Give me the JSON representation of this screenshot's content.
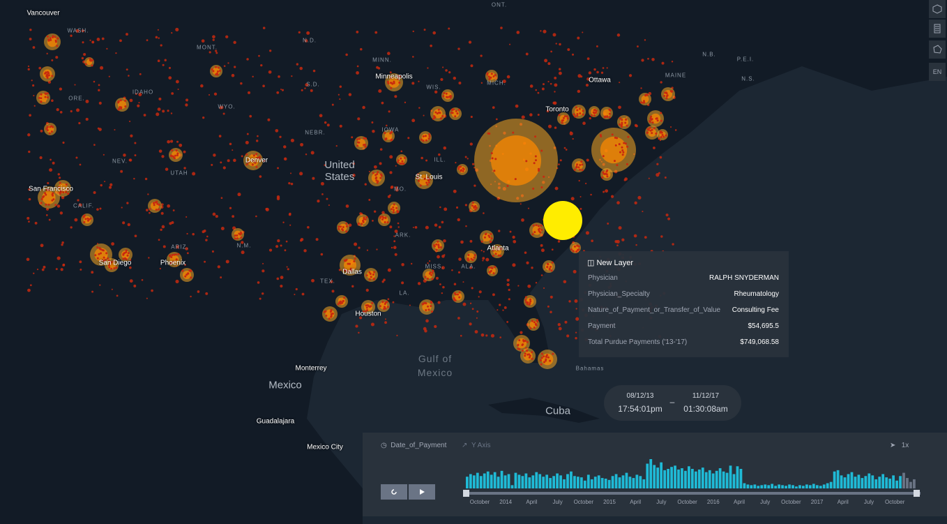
{
  "map_labels": [
    "Vancouver",
    "WASH.",
    "MONT.",
    "N.D.",
    "ONT.",
    "MINN.",
    "Minneapolis",
    "ORE.",
    "IDAHO",
    "WYO.",
    "S.D.",
    "WIS.",
    "MICH.",
    "Ottawa",
    "MAINE",
    "N.B.",
    "P.E.I.",
    "N.S.",
    "Toronto",
    "NEBR.",
    "IOWA",
    "NEV.",
    "UTAH",
    "Denver",
    "United States",
    "ILL.",
    "St. Louis",
    "MO.",
    "San Francisco",
    "CALIF.",
    "N.M.",
    "ARIZ.",
    "Phoenix",
    "San Diego",
    "TEX.",
    "ARK.",
    "MISS.",
    "ALA.",
    "LA.",
    "Atlanta",
    "Dallas",
    "Houston",
    "Gulf of Mexico",
    "Bahamas",
    "Monterrey",
    "Mexico",
    "Cuba",
    "Guadalajara",
    "Mexico City"
  ],
  "side_buttons": {
    "language": "EN"
  },
  "tooltip": {
    "title": "New Layer",
    "rows": [
      [
        "Physician",
        "RALPH SNYDERMAN"
      ],
      [
        "Physician_Specialty",
        "Rheumatology"
      ],
      [
        "Nature_of_Payment_or_Transfer_of_Value",
        "Consulting Fee"
      ],
      [
        "Payment",
        "$54,695.5"
      ],
      [
        "Total Purdue Payments ('13-'17)",
        "$749,068.58"
      ]
    ]
  },
  "time_range": {
    "start_date": "08/12/13",
    "start_time": "17:54:01pm",
    "separator": "–",
    "end_date": "11/12/17",
    "end_time": "01:30:08am"
  },
  "timeline": {
    "field": "Date_of_Payment",
    "y_axis": "Y Axis",
    "speed": "1x",
    "x_labels": [
      "October",
      "2014",
      "April",
      "July",
      "October",
      "2015",
      "April",
      "July",
      "October",
      "2016",
      "April",
      "July",
      "October",
      "2017",
      "April",
      "July",
      "October"
    ],
    "counts": [
      18,
      22,
      20,
      24,
      19,
      23,
      26,
      21,
      25,
      18,
      27,
      20,
      22,
      5,
      24,
      21,
      19,
      23,
      17,
      20,
      25,
      22,
      18,
      21,
      16,
      19,
      23,
      20,
      14,
      22,
      26,
      19,
      18,
      17,
      12,
      21,
      14,
      18,
      20,
      16,
      15,
      13,
      19,
      22,
      17,
      20,
      24,
      18,
      16,
      21,
      19,
      14,
      38,
      45,
      36,
      32,
      40,
      28,
      30,
      33,
      35,
      29,
      31,
      27,
      34,
      30,
      26,
      29,
      32,
      25,
      28,
      23,
      27,
      31,
      26,
      24,
      35,
      22,
      34,
      30,
      8,
      6,
      5,
      6,
      4,
      5,
      6,
      5,
      7,
      4,
      6,
      5,
      4,
      6,
      5,
      3,
      5,
      4,
      6,
      5,
      7,
      5,
      4,
      6,
      8,
      10,
      26,
      28,
      20,
      17,
      22,
      25,
      18,
      21,
      16,
      19,
      23,
      20,
      14,
      18,
      22,
      17,
      15,
      20,
      12,
      19,
      24,
      16,
      10,
      14
    ]
  }
}
